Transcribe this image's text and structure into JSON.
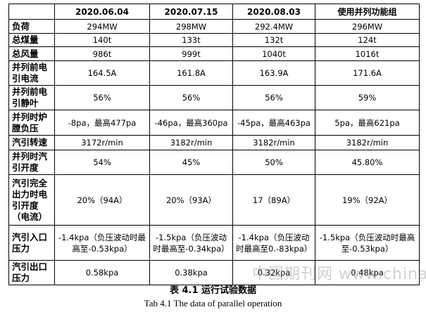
{
  "table": {
    "header": [
      "2020.06.04",
      "2020.07.15",
      "2020.08.03",
      "使用并列功能组"
    ],
    "rows": [
      [
        "负荷",
        "294MW",
        "298MW",
        "292.4MW",
        "296MW"
      ],
      [
        "总煤量",
        "140t",
        "133t",
        "132t",
        "124t"
      ],
      [
        "总风量",
        "986t",
        "999t",
        "1040t",
        "1016t"
      ],
      [
        "并列前电引电流",
        "164.5A",
        "161.8A",
        "163.9A",
        "171.6A"
      ],
      [
        "并列前电引静叶",
        "56%",
        "56%",
        "56%",
        "59%"
      ],
      [
        "并列时炉膛负压",
        "-8pa，最高477pa",
        "-46pa，最高360pa",
        "-45pa，最高463pa",
        "5pa，最高621pa"
      ],
      [
        "汽引转速",
        "3172r/min",
        "3182r/min",
        "3182r/min",
        "3182r/min"
      ],
      [
        "并列时汽引开度",
        "54%",
        "45%",
        "50%",
        "45.80%"
      ],
      [
        "汽引完全出力时电引开度（电流）",
        "20%（94A）",
        "20%（93A）",
        "17（89A）",
        "19%（92A）"
      ],
      [
        "汽引入口压力",
        "-1.4kpa（负压波动时最高至-0.53kpa）",
        "-1.5kpa（负压波动时最高至-0.34kpa）",
        "-1.4kpa（负压波动时最高至0.-83kpa）",
        "-1.5kpa（负压波动时最高至-0.53kpa）"
      ],
      [
        "汽引出口压力",
        "0.58kpa",
        "0.38kpa",
        "0.32kpa",
        "0.48kpa"
      ]
    ]
  },
  "caption": {
    "zh": "表 4.1 运行试验数据",
    "en": "Tab 4.1 The data of parallel operation"
  },
  "watermark": "中国期刊网 www.chinaqking.com"
}
